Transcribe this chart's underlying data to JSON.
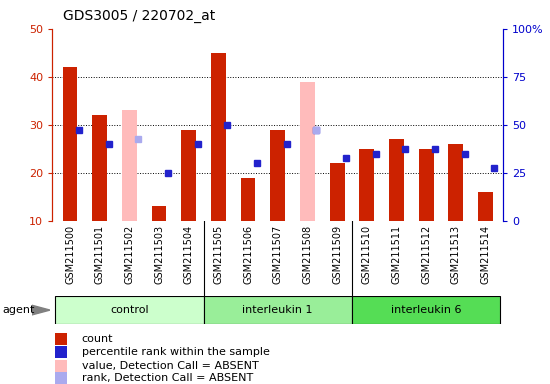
{
  "title": "GDS3005 / 220702_at",
  "samples": [
    "GSM211500",
    "GSM211501",
    "GSM211502",
    "GSM211503",
    "GSM211504",
    "GSM211505",
    "GSM211506",
    "GSM211507",
    "GSM211508",
    "GSM211509",
    "GSM211510",
    "GSM211511",
    "GSM211512",
    "GSM211513",
    "GSM211514"
  ],
  "groups": [
    {
      "label": "control",
      "indices": [
        0,
        1,
        2,
        3,
        4
      ],
      "color": "#ccffcc"
    },
    {
      "label": "interleukin 1",
      "indices": [
        5,
        6,
        7,
        8,
        9
      ],
      "color": "#99ee99"
    },
    {
      "label": "interleukin 6",
      "indices": [
        10,
        11,
        12,
        13,
        14
      ],
      "color": "#55dd55"
    }
  ],
  "red_bars": [
    42,
    32,
    null,
    13,
    29,
    45,
    19,
    29,
    null,
    22,
    25,
    27,
    25,
    26,
    16
  ],
  "pink_bars": [
    null,
    null,
    33,
    null,
    null,
    null,
    null,
    null,
    39,
    null,
    null,
    null,
    null,
    null,
    null
  ],
  "blue_squares": [
    29,
    26,
    null,
    20,
    26,
    30,
    22,
    26,
    29,
    23,
    24,
    25,
    25,
    24,
    21
  ],
  "lavender_squares": [
    null,
    null,
    27,
    null,
    null,
    null,
    null,
    null,
    29,
    null,
    null,
    null,
    null,
    null,
    null
  ],
  "ylim_left": [
    10,
    50
  ],
  "ylim_right": [
    0,
    100
  ],
  "yticks_left": [
    10,
    20,
    30,
    40,
    50
  ],
  "yticks_right": [
    0,
    25,
    50,
    75,
    100
  ],
  "left_tick_labels": [
    "10",
    "20",
    "30",
    "40",
    "50"
  ],
  "right_tick_labels": [
    "0",
    "25",
    "50",
    "75",
    "100%"
  ],
  "bar_width": 0.5,
  "red_color": "#cc2200",
  "pink_color": "#ffbbbb",
  "blue_color": "#2222cc",
  "lavender_color": "#aaaaee",
  "grid_color": "#000000",
  "tick_bg_color": "#cccccc",
  "plot_bg": "#ffffff",
  "title_color": "#000000",
  "left_axis_color": "#cc2200",
  "right_axis_color": "#0000cc",
  "legend_items": [
    {
      "color": "#cc2200",
      "marker": "s",
      "label": "count"
    },
    {
      "color": "#2222cc",
      "marker": "s",
      "label": "percentile rank within the sample"
    },
    {
      "color": "#ffbbbb",
      "marker": "s",
      "label": "value, Detection Call = ABSENT"
    },
    {
      "color": "#aaaaee",
      "marker": "s",
      "label": "rank, Detection Call = ABSENT"
    }
  ]
}
